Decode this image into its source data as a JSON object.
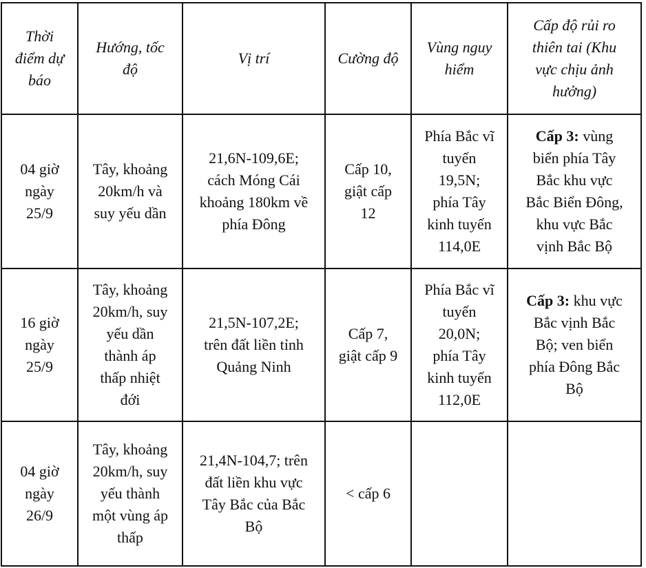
{
  "headers": [
    "Thời\nđiểm dự\nbáo",
    "Hướng, tốc\nđộ",
    "Vị trí",
    "Cường độ",
    "Vùng nguy\nhiểm",
    "Cấp độ rủi ro\nthiên tai (Khu\nvực chịu ảnh\nhưởng)"
  ],
  "rows": [
    {
      "time": "04 giờ\nngày\n25/9",
      "direction": "Tây, khoảng\n20km/h và\nsuy yếu dần",
      "position": "21,6N-109,6E;\ncách Móng Cái\nkhoảng 180km về\nphía Đông",
      "intensity": "Cấp 10,\ngiật cấp\n12",
      "danger_zone": "Phía Bắc vĩ\ntuyến\n19,5N;\nphía Tây\nkinh tuyến\n114,0E",
      "risk_level": "Cấp 3:",
      "risk_area": " vùng\nbiển phía Tây\nBắc khu vực\nBắc Biển Đông,\nkhu vực Bắc\nvịnh Bắc Bộ"
    },
    {
      "time": "16 giờ\nngày\n25/9",
      "direction": "Tây, khoảng\n20km/h, suy\nyếu dần\nthành áp\nthấp nhiệt\nđới",
      "position": "21,5N-107,2E;\ntrên đất liền tỉnh\nQuảng Ninh",
      "intensity": "Cấp 7,\ngiật cấp 9",
      "danger_zone": "Phía Bắc vĩ\ntuyến\n20,0N;\nphía Tây\nkinh tuyến\n112,0E",
      "risk_level": "Cấp 3:",
      "risk_area": " khu vực\nBắc vịnh Bắc\nBộ; ven biển\nphía Đông Bắc\nBộ"
    },
    {
      "time": "04 giờ\nngày\n26/9",
      "direction": "Tây, khoảng\n20km/h, suy\nyếu thành\nmột vùng áp\nthấp",
      "position": "21,4N-104,7; trên\nđất liền khu vực\nTây Bắc của Bắc\nBộ",
      "intensity": "< cấp 6",
      "danger_zone": "",
      "risk_level": "",
      "risk_area": ""
    }
  ]
}
